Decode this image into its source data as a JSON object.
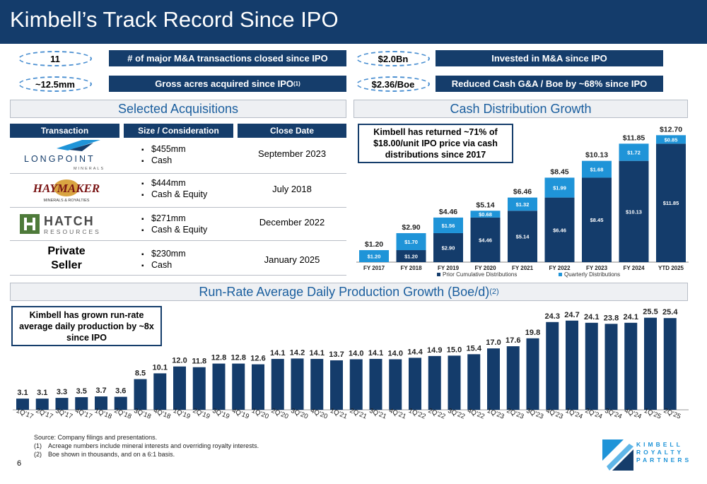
{
  "header": {
    "title": "Kimbell’s Track Record Since IPO"
  },
  "stats": [
    {
      "value": "11",
      "label": "# of major M&A transactions closed since IPO"
    },
    {
      "value": "~12.5mm",
      "label": "Gross acres acquired since IPO",
      "sup": "(1)"
    },
    {
      "value": "$2.0Bn",
      "label": "Invested in M&A since IPO"
    },
    {
      "value": "$2.36/Boe",
      "label": "Reduced Cash G&A / Boe by ~68% since IPO"
    }
  ],
  "acquisitions": {
    "heading": "Selected Acquisitions",
    "columns": [
      "Transaction",
      "Size / Consideration",
      "Close Date"
    ],
    "rows": [
      {
        "logo": "LONGPOINT",
        "logo_sub": "MINERALS",
        "size": "$455mm",
        "consideration": "Cash",
        "date": "September 2023"
      },
      {
        "logo": "HAYMAKER",
        "logo_sub": "MINERALS & ROYALTIES",
        "size": "$444mm",
        "consideration": "Cash & Equity",
        "date": "July 2018"
      },
      {
        "logo": "HATCH",
        "logo_sub": "RESOURCES",
        "size": "$271mm",
        "consideration": "Cash & Equity",
        "date": "December 2022"
      },
      {
        "logo": "Private Seller",
        "logo_sub": "",
        "size": "$230mm",
        "consideration": "Cash",
        "date": "January 2025"
      }
    ]
  },
  "distribution": {
    "heading": "Cash Distribution Growth",
    "callout": "Kimbell has returned ~71% of $18.00/unit IPO price via cash distributions since 2017"
  },
  "production": {
    "heading": "Run-Rate Average Daily Production Growth (Boe/d)",
    "heading_sup": "(2)",
    "callout": "Kimbell has grown run-rate average daily production by ~8x since IPO"
  },
  "chart_data": [
    {
      "type": "bar",
      "stacked": true,
      "categories": [
        "FY 2017",
        "FY 2018",
        "FY 2019",
        "FY 2020",
        "FY 2021",
        "FY 2022",
        "FY 2023",
        "FY 2024",
        "YTD 2025"
      ],
      "series": [
        {
          "name": "Prior Cumulative Distributions",
          "color": "#143c6b",
          "values": [
            0,
            1.2,
            2.9,
            4.46,
            5.14,
            6.46,
            8.45,
            10.13,
            11.85
          ],
          "labels": [
            "",
            "$1.20",
            "$2.90",
            "$4.46",
            "$5.14",
            "$6.46",
            "$8.45",
            "$10.13",
            "$11.85"
          ]
        },
        {
          "name": "Quarterly Distributions",
          "color": "#1f94d8",
          "values": [
            1.2,
            1.7,
            1.56,
            0.68,
            1.32,
            1.99,
            1.68,
            1.72,
            0.85
          ],
          "labels": [
            "$1.20",
            "$1.70",
            "$1.56",
            "$0.68",
            "$1.32",
            "$1.99",
            "$1.68",
            "$1.72",
            "$0.85"
          ]
        }
      ],
      "totals": [
        "$1.20",
        "$2.90",
        "$4.46",
        "$5.14",
        "$6.46",
        "$8.45",
        "$10.13",
        "$11.85",
        "$12.70"
      ],
      "ylim": [
        0,
        13.5
      ],
      "legend": "bottom"
    },
    {
      "type": "bar",
      "color": "#143c6b",
      "categories": [
        "1Q'17",
        "2Q'17",
        "3Q'17",
        "4Q'17",
        "1Q'18",
        "2Q'18",
        "3Q'18",
        "4Q'18",
        "1Q'19",
        "2Q'19",
        "3Q'19",
        "4Q'19",
        "1Q'20",
        "2Q'20",
        "3Q'20",
        "4Q'20",
        "1Q'21",
        "2Q'21",
        "3Q'21",
        "4Q'21",
        "1Q'22",
        "2Q'22",
        "3Q'22",
        "4Q'22",
        "1Q'23",
        "2Q'23",
        "3Q'23",
        "4Q'23",
        "1Q'24",
        "2Q'24",
        "3Q'24",
        "4Q'24",
        "1Q'25",
        "2Q'25"
      ],
      "values": [
        3.1,
        3.1,
        3.3,
        3.5,
        3.7,
        3.6,
        8.5,
        10.1,
        12.0,
        11.8,
        12.8,
        12.8,
        12.6,
        14.1,
        14.2,
        14.1,
        13.7,
        14.0,
        14.1,
        14.0,
        14.4,
        14.9,
        15.0,
        15.4,
        17.0,
        17.6,
        19.8,
        24.3,
        24.7,
        24.1,
        23.8,
        24.1,
        25.5,
        25.4
      ],
      "labels": [
        "3.1",
        "3.1",
        "3.3",
        "3.5",
        "3.7",
        "3.6",
        "8.5",
        "10.1",
        "12.0",
        "11.8",
        "12.8",
        "12.8",
        "12.6",
        "14.1",
        "14.2",
        "14.1",
        "13.7",
        "14.0",
        "14.1",
        "14.0",
        "14.4",
        "14.9",
        "15.0",
        "15.4",
        "17.0",
        "17.6",
        "19.8",
        "24.3",
        "24.7",
        "24.1",
        "23.8",
        "24.1",
        "25.5",
        "25.4"
      ],
      "ylim": [
        0,
        27
      ]
    }
  ],
  "footer": {
    "source": "Source: Company filings and presentations.",
    "notes": [
      {
        "num": "(1)",
        "text": "Acreage numbers include mineral interests and overriding royalty interests."
      },
      {
        "num": "(2)",
        "text": "Boe shown in thousands, and on a 6:1 basis."
      }
    ],
    "page": "6",
    "brand_lines": [
      "KIMBELL",
      "ROYALTY",
      "PARTNERS"
    ],
    "brand_color": "#1f94d8"
  }
}
